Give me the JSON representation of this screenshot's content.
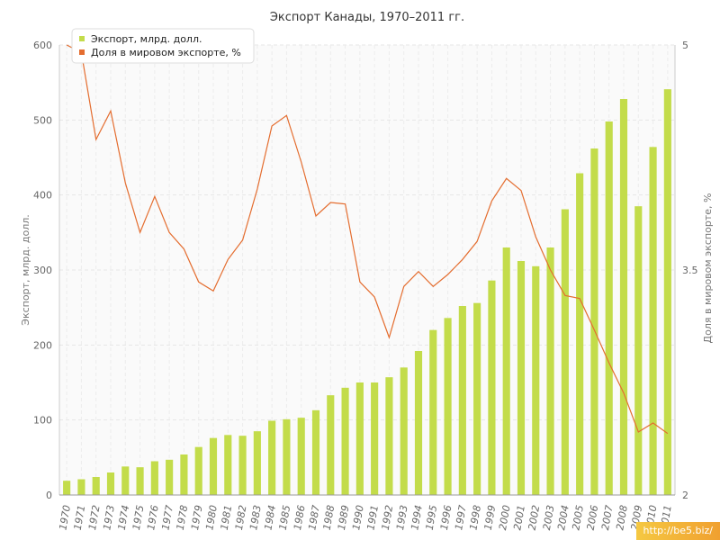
{
  "chart_data": {
    "type": "bar",
    "title": "Экспорт Канады, 1970–2011 гг.",
    "ylabel": "Экспорт, млрд. долл.",
    "y2label": "Доля в мировом экспорте, %",
    "ylim": [
      0,
      600
    ],
    "y2lim": [
      2,
      5
    ],
    "yticks": [
      "0",
      "100",
      "200",
      "300",
      "400",
      "500",
      "600"
    ],
    "y2ticks": [
      "2",
      "3.5",
      "5"
    ],
    "legend_position": "top-left",
    "grid": true,
    "categories": [
      "1970",
      "1971",
      "1972",
      "1973",
      "1974",
      "1975",
      "1976",
      "1977",
      "1978",
      "1979",
      "1980",
      "1981",
      "1982",
      "1983",
      "1984",
      "1985",
      "1986",
      "1987",
      "1988",
      "1989",
      "1990",
      "1991",
      "1992",
      "1993",
      "1994",
      "1995",
      "1996",
      "1997",
      "1998",
      "1999",
      "2000",
      "2001",
      "2002",
      "2003",
      "2004",
      "2005",
      "2006",
      "2007",
      "2008",
      "2009",
      "2010",
      "2011"
    ],
    "series": [
      {
        "name": "Экспорт, млрд. долл.",
        "type": "bar",
        "axis": "left",
        "color": "#c3dc4a",
        "values": [
          19,
          21,
          24,
          30,
          38,
          37,
          45,
          47,
          54,
          64,
          76,
          80,
          79,
          85,
          99,
          101,
          103,
          113,
          133,
          143,
          150,
          150,
          157,
          170,
          192,
          220,
          236,
          252,
          256,
          286,
          330,
          312,
          305,
          330,
          381,
          429,
          462,
          498,
          528,
          385,
          464,
          541
        ]
      },
      {
        "name": "Доля в мировом экспорте, %",
        "type": "line",
        "axis": "right",
        "color": "#e46d2f",
        "values": [
          5.0,
          4.95,
          4.37,
          4.56,
          4.08,
          3.75,
          3.99,
          3.75,
          3.64,
          3.42,
          3.36,
          3.57,
          3.7,
          4.04,
          4.46,
          4.53,
          4.22,
          3.86,
          3.95,
          3.94,
          3.42,
          3.32,
          3.05,
          3.39,
          3.49,
          3.39,
          3.47,
          3.57,
          3.69,
          3.96,
          4.11,
          4.03,
          3.72,
          3.5,
          3.33,
          3.31,
          3.1,
          2.88,
          2.68,
          2.42,
          2.48,
          2.41
        ]
      }
    ]
  },
  "watermark": "http://be5.biz/"
}
